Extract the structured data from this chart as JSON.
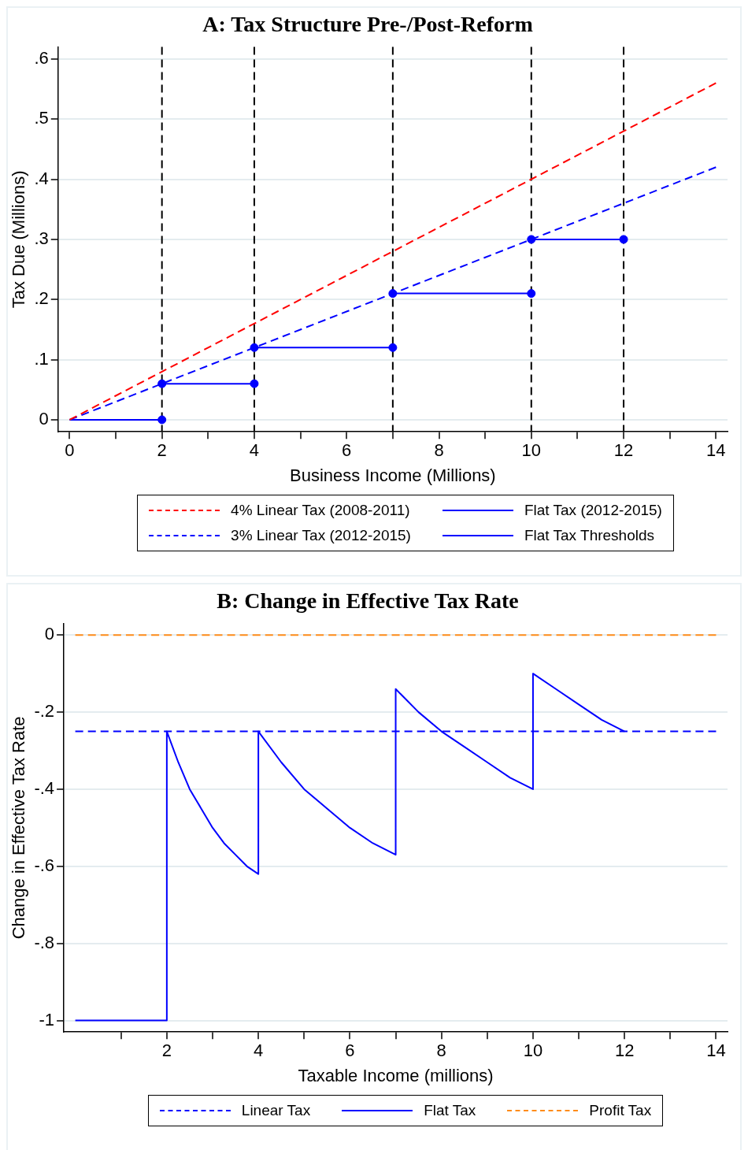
{
  "chart_data": [
    {
      "type": "line",
      "title": "A: Tax Structure Pre-/Post-Reform",
      "xlabel": "Business Income (Millions)",
      "ylabel": "Tax Due (Millions)",
      "xlim": [
        -0.25,
        14.25
      ],
      "ylim": [
        -0.02,
        0.62
      ],
      "xticks": [
        0,
        {
          "value": 1,
          "label": null
        },
        2,
        {
          "value": 3,
          "label": null
        },
        4,
        {
          "value": 5,
          "label": null
        },
        6,
        {
          "value": 7,
          "label": null
        },
        8,
        {
          "value": 9,
          "label": null
        },
        10,
        {
          "value": 11,
          "label": null
        },
        12,
        {
          "value": 13,
          "label": null
        },
        14
      ],
      "yticks": [
        0,
        {
          "value": 0.1,
          "label": ".1"
        },
        {
          "value": 0.2,
          "label": ".2"
        },
        {
          "value": 0.3,
          "label": ".3"
        },
        {
          "value": 0.4,
          "label": ".4"
        },
        {
          "value": 0.5,
          "label": ".5"
        },
        {
          "value": 0.6,
          "label": ".6"
        }
      ],
      "grid": "y",
      "legend": "bottom",
      "marker": "none",
      "ref_lines": [
        {
          "axis": "x",
          "value": 2,
          "color": "#000000",
          "line_style": "dashed"
        },
        {
          "axis": "x",
          "value": 4,
          "color": "#000000",
          "line_style": "dashed"
        },
        {
          "axis": "x",
          "value": 7,
          "color": "#000000",
          "line_style": "dashed"
        },
        {
          "axis": "x",
          "value": 10,
          "color": "#000000",
          "line_style": "dashed"
        },
        {
          "axis": "x",
          "value": 12,
          "color": "#000000",
          "line_style": "dashed"
        }
      ],
      "series": [
        {
          "name": "4% Linear Tax (2008-2011)",
          "color": "#ff0000",
          "line_style": "dashed",
          "x": [
            0,
            14
          ],
          "values": [
            0,
            0.56
          ]
        },
        {
          "name": "3% Linear Tax (2012-2015)",
          "color": "#0000ff",
          "line_style": "dashed",
          "x": [
            0,
            14
          ],
          "values": [
            0,
            0.42
          ]
        },
        {
          "name": "Flat Tax (2012-2015)",
          "color": "#0000ff",
          "line_style": "solid",
          "x": [
            0,
            2
          ],
          "values": [
            0,
            0
          ]
        },
        {
          "color": "#0000ff",
          "line_style": "solid",
          "x": [
            2,
            4
          ],
          "values": [
            0.06,
            0.06
          ]
        },
        {
          "color": "#0000ff",
          "line_style": "solid",
          "x": [
            4,
            7
          ],
          "values": [
            0.12,
            0.12
          ]
        },
        {
          "color": "#0000ff",
          "line_style": "solid",
          "x": [
            7,
            10
          ],
          "values": [
            0.21,
            0.21
          ]
        },
        {
          "color": "#0000ff",
          "line_style": "solid",
          "x": [
            10,
            12
          ],
          "values": [
            0.3,
            0.3
          ]
        },
        {
          "name": "Flat Tax Thresholds",
          "type": "scatter",
          "color": "#0000ff",
          "marker": "circle",
          "x": [
            2,
            2,
            4,
            4,
            7,
            7,
            10,
            10,
            12
          ],
          "values": [
            0,
            0.06,
            0.06,
            0.12,
            0.12,
            0.21,
            0.21,
            0.3,
            0.3
          ]
        }
      ]
    },
    {
      "type": "line",
      "title": "B: Change in Effective Tax Rate",
      "xlabel": "Taxable Income (millions)",
      "ylabel": "Change in Effective Tax Rate",
      "xlim": [
        -0.25,
        14.25
      ],
      "ylim": [
        -1.03,
        0.03
      ],
      "xticks": [
        {
          "value": 1,
          "label": null
        },
        2,
        {
          "value": 3,
          "label": null
        },
        4,
        {
          "value": 5,
          "label": null
        },
        6,
        {
          "value": 7,
          "label": null
        },
        8,
        {
          "value": 9,
          "label": null
        },
        10,
        {
          "value": 11,
          "label": null
        },
        12,
        {
          "value": 13,
          "label": null
        },
        14
      ],
      "yticks": [
        {
          "value": 0,
          "label": "0"
        },
        {
          "value": -0.2,
          "label": "-.2"
        },
        {
          "value": -0.4,
          "label": "-.4"
        },
        {
          "value": -0.6,
          "label": "-.6"
        },
        {
          "value": -0.8,
          "label": "-.8"
        },
        {
          "value": -1,
          "label": "-1"
        }
      ],
      "grid": "y",
      "legend": "bottom",
      "marker": "none",
      "series": [
        {
          "name": "Linear Tax",
          "color": "#0000ff",
          "line_style": "dashed",
          "x": [
            0,
            14
          ],
          "values": [
            -0.25,
            -0.25
          ]
        },
        {
          "name": "Flat Tax",
          "color": "#0000ff",
          "line_style": "solid",
          "x": [
            0,
            2,
            2,
            2.25,
            2.5,
            2.75,
            3,
            3.25,
            3.5,
            3.75,
            4,
            4,
            4.5,
            5,
            5.5,
            6,
            6.5,
            7,
            7,
            7.5,
            8,
            8.5,
            9,
            9.5,
            10,
            10,
            10.5,
            11,
            11.5,
            12
          ],
          "values": [
            -1,
            -1,
            -0.25,
            -0.33,
            -0.4,
            -0.45,
            -0.5,
            -0.54,
            -0.57,
            -0.6,
            -0.62,
            -0.25,
            -0.33,
            -0.4,
            -0.45,
            -0.5,
            -0.54,
            -0.57,
            -0.14,
            -0.2,
            -0.25,
            -0.29,
            -0.33,
            -0.37,
            -0.4,
            -0.1,
            -0.14,
            -0.18,
            -0.22,
            -0.25
          ]
        },
        {
          "name": "Profit Tax",
          "color": "#ff8c1a",
          "line_style": "dashed",
          "x": [
            0,
            14
          ],
          "values": [
            0,
            0
          ]
        }
      ]
    }
  ]
}
